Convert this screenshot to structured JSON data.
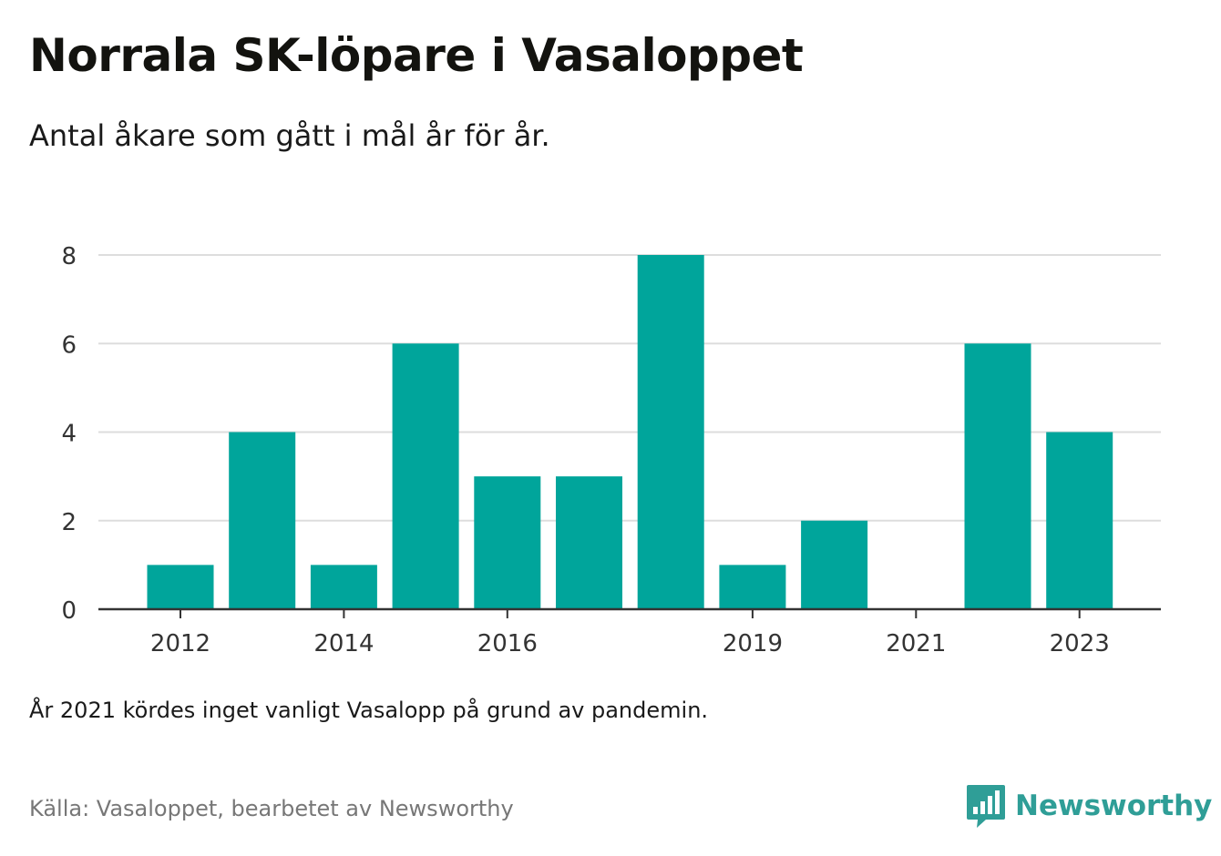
{
  "header": {
    "title": "Norrala SK-löpare i Vasaloppet",
    "subtitle": "Antal åkare som gått i mål år för år."
  },
  "footer": {
    "note": "År 2021 kördes inget vanligt Vasalopp på grund av pandemin.",
    "source": "Källa: Vasaloppet, bearbetet av Newsworthy",
    "brand": "Newsworthy",
    "brand_icon": "bar-chart-speech-bubble-icon"
  },
  "colors": {
    "bar": "#00a59b",
    "grid": "#dddddd",
    "axis": "#333333",
    "brand": "#2f9e97"
  },
  "chart_data": {
    "type": "bar",
    "categories": [
      "2012",
      "2013",
      "2014",
      "2015",
      "2016",
      "2017",
      "2018",
      "2019",
      "2020",
      "2021",
      "2022",
      "2023"
    ],
    "values": [
      1,
      4,
      1,
      6,
      3,
      3,
      8,
      1,
      2,
      0,
      6,
      4
    ],
    "x_tick_labels": [
      "2012",
      "2014",
      "2016",
      "2019",
      "2021",
      "2023"
    ],
    "y_ticks": [
      0,
      2,
      4,
      6,
      8
    ],
    "ylim": [
      0,
      8
    ],
    "xlabel": "",
    "ylabel": "",
    "grid": true,
    "legend": "none"
  }
}
